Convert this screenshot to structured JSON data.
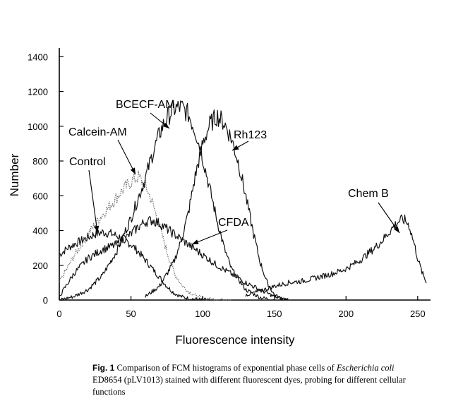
{
  "chart_data": {
    "type": "line",
    "title": "",
    "xlabel": "Fluorescence intensity",
    "ylabel": "Number",
    "xlim": [
      0,
      256
    ],
    "ylim": [
      0,
      1450
    ],
    "xticks": [
      0,
      50,
      100,
      150,
      200,
      250
    ],
    "yticks": [
      0,
      200,
      400,
      600,
      800,
      1000,
      1200,
      1400
    ],
    "grid": false,
    "legend": "none (series labelled by annotation arrows)",
    "series": [
      {
        "name": "Control",
        "style": "solid",
        "x": [
          0,
          3,
          6,
          10,
          15,
          20,
          25,
          30,
          35,
          40,
          45,
          50,
          55,
          60,
          65,
          70,
          75,
          80,
          85,
          90,
          95,
          100,
          105
        ],
        "y": [
          260,
          280,
          300,
          320,
          340,
          360,
          380,
          390,
          385,
          370,
          350,
          320,
          280,
          230,
          180,
          130,
          80,
          40,
          20,
          10,
          5,
          2,
          0
        ]
      },
      {
        "name": "Calcein-AM",
        "style": "dotted",
        "x": [
          0,
          10,
          20,
          30,
          40,
          45,
          50,
          55,
          60,
          65,
          70,
          75,
          80,
          85,
          90,
          95,
          100,
          110,
          120
        ],
        "y": [
          100,
          250,
          380,
          490,
          590,
          640,
          680,
          710,
          660,
          560,
          420,
          280,
          160,
          90,
          50,
          25,
          10,
          3,
          0
        ]
      },
      {
        "name": "BCECF-AM",
        "style": "solid",
        "x": [
          0,
          10,
          20,
          30,
          40,
          50,
          60,
          65,
          70,
          75,
          80,
          85,
          90,
          95,
          100,
          105,
          110,
          115,
          120,
          130,
          140,
          150
        ],
        "y": [
          0,
          20,
          60,
          140,
          280,
          470,
          700,
          840,
          960,
          1050,
          1100,
          1110,
          1070,
          970,
          820,
          640,
          460,
          300,
          180,
          60,
          15,
          0
        ]
      },
      {
        "name": "Rh123",
        "style": "solid",
        "x": [
          60,
          70,
          80,
          85,
          90,
          95,
          100,
          105,
          110,
          115,
          120,
          125,
          130,
          135,
          140,
          145,
          150,
          155,
          160
        ],
        "y": [
          20,
          80,
          220,
          340,
          500,
          720,
          900,
          1010,
          1060,
          1020,
          930,
          790,
          600,
          400,
          220,
          100,
          30,
          8,
          0
        ]
      },
      {
        "name": "CFDA",
        "style": "solid",
        "x": [
          0,
          10,
          20,
          30,
          40,
          50,
          55,
          60,
          65,
          70,
          75,
          80,
          90,
          100,
          110,
          120,
          130,
          140,
          150,
          160
        ],
        "y": [
          20,
          150,
          240,
          290,
          320,
          380,
          420,
          450,
          460,
          440,
          410,
          380,
          320,
          260,
          200,
          150,
          100,
          60,
          20,
          0
        ]
      },
      {
        "name": "Chem B",
        "style": "solid",
        "x": [
          130,
          140,
          150,
          160,
          170,
          180,
          190,
          200,
          210,
          220,
          225,
          230,
          235,
          238,
          241,
          244,
          247,
          250,
          253,
          256
        ],
        "y": [
          30,
          50,
          80,
          100,
          110,
          130,
          150,
          180,
          230,
          300,
          340,
          390,
          440,
          460,
          460,
          430,
          340,
          240,
          160,
          100
        ]
      }
    ],
    "annotations": [
      {
        "text": "BCECF-AM",
        "series": "BCECF-AM"
      },
      {
        "text": "Calcein-AM",
        "series": "Calcein-AM"
      },
      {
        "text": "Control",
        "series": "Control"
      },
      {
        "text": "Rh123",
        "series": "Rh123"
      },
      {
        "text": "CFDA",
        "series": "CFDA"
      },
      {
        "text": "Chem B",
        "series": "Chem B"
      }
    ]
  },
  "caption": {
    "fig_label": "Fig. 1",
    "text_before_italic": "Comparison of FCM histograms of exponential phase cells of ",
    "italic": "Escherichia coli",
    "text_after_italic": " ED8654 (pLV1013) stained with different fluorescent dyes, probing for different cellular functions"
  }
}
